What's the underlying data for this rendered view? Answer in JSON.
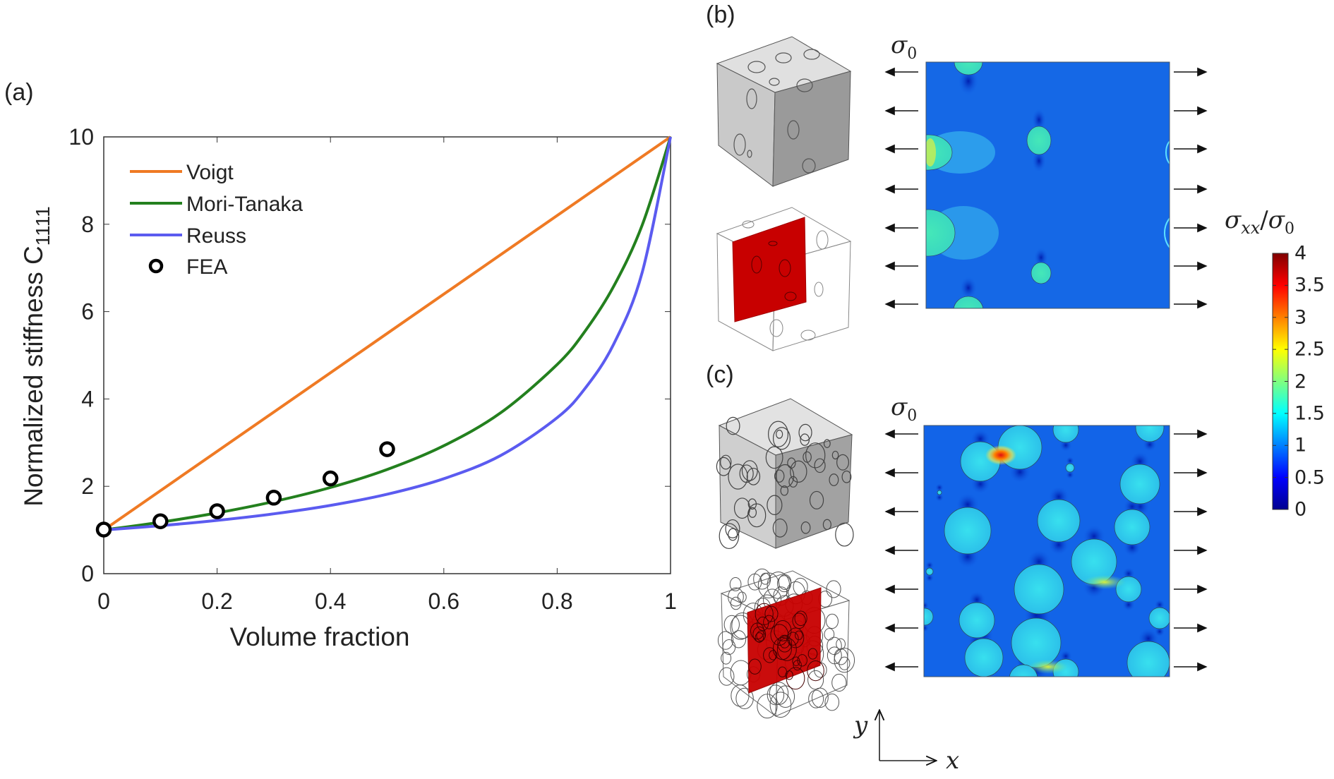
{
  "panel_labels": {
    "a": "(a)",
    "b": "(b)",
    "c": "(c)"
  },
  "chart_data": {
    "type": "line",
    "title": "",
    "xlabel": "Volume fraction",
    "ylabel": "Normalized stiffness C",
    "ylabel_subscript": "1111",
    "xlim": [
      0,
      1
    ],
    "ylim": [
      0,
      10
    ],
    "xticks": [
      0,
      0.2,
      0.4,
      0.6,
      0.8,
      1
    ],
    "xtick_labels": [
      "0",
      "0.2",
      "0.4",
      "0.6",
      "0.8",
      "1"
    ],
    "yticks": [
      0,
      2,
      4,
      6,
      8,
      10
    ],
    "ytick_labels": [
      "0",
      "2",
      "4",
      "6",
      "8",
      "10"
    ],
    "grid": false,
    "legend_placement": "top-left",
    "series": [
      {
        "name": "Voigt",
        "kind": "line",
        "color": "#ef7a24",
        "x": [
          0,
          1
        ],
        "y": [
          1,
          10
        ]
      },
      {
        "name": "Mori-Tanaka",
        "kind": "line",
        "color": "#23801e",
        "x": [
          0,
          0.1,
          0.2,
          0.3,
          0.4,
          0.5,
          0.6,
          0.7,
          0.8,
          0.85,
          0.9,
          0.95,
          1
        ],
        "y": [
          1,
          1.178,
          1.391,
          1.651,
          1.973,
          2.385,
          2.929,
          3.681,
          4.789,
          5.567,
          6.586,
          7.98,
          10
        ]
      },
      {
        "name": "Reuss",
        "kind": "line",
        "color": "#5b5bf0",
        "x": [
          0,
          0.1,
          0.2,
          0.3,
          0.4,
          0.5,
          0.6,
          0.7,
          0.8,
          0.85,
          0.9,
          0.95,
          1
        ],
        "y": [
          1,
          1.099,
          1.22,
          1.37,
          1.563,
          1.818,
          2.174,
          2.703,
          3.571,
          4.255,
          5.263,
          6.897,
          10
        ]
      },
      {
        "name": "FEA",
        "kind": "marker",
        "color": "#000000",
        "x": [
          0,
          0.1,
          0.2,
          0.3,
          0.4,
          0.5
        ],
        "y": [
          1.01,
          1.2,
          1.43,
          1.74,
          2.18,
          2.85
        ]
      }
    ]
  },
  "stress_maps": {
    "load_symbol": "σ",
    "load_subscript": "0",
    "axes": {
      "x": "x",
      "y": "y"
    }
  },
  "colorbar": {
    "title_symbol": "σ",
    "title_sub": "xx",
    "title_sep": "/",
    "title_symbol2": "σ",
    "title_sub2": "0",
    "range": [
      0,
      4
    ],
    "ticks": [
      "0",
      "0.5",
      "1",
      "1.5",
      "2",
      "2.5",
      "3",
      "3.5",
      "4"
    ],
    "colormap": "jet"
  }
}
